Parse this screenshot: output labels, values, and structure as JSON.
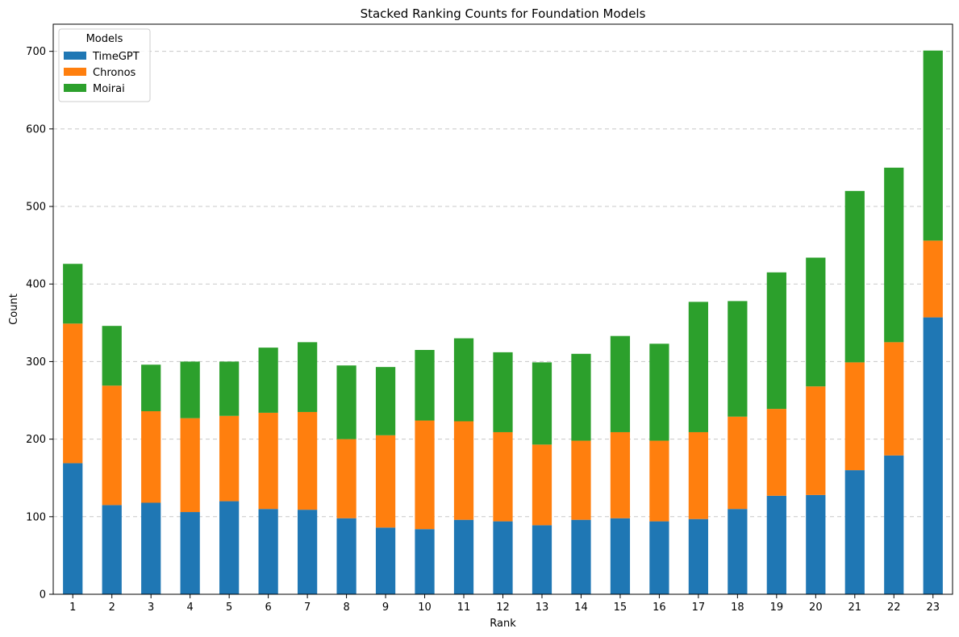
{
  "chart_data": {
    "type": "bar",
    "stacked": true,
    "title": "Stacked Ranking Counts for Foundation Models",
    "xlabel": "Rank",
    "ylabel": "Count",
    "ylim": [
      0,
      735
    ],
    "yticks": [
      0,
      100,
      200,
      300,
      400,
      500,
      600,
      700
    ],
    "grid": "y-dashed",
    "legend": {
      "title": "Models",
      "placement": "top-left"
    },
    "categories": [
      "1",
      "2",
      "3",
      "4",
      "5",
      "6",
      "7",
      "8",
      "9",
      "10",
      "11",
      "12",
      "13",
      "14",
      "15",
      "16",
      "17",
      "18",
      "19",
      "20",
      "21",
      "22",
      "23"
    ],
    "series": [
      {
        "name": "TimeGPT",
        "color": "#1f77b4",
        "values": [
          169,
          115,
          118,
          106,
          120,
          110,
          109,
          98,
          86,
          84,
          96,
          94,
          89,
          96,
          98,
          94,
          97,
          110,
          127,
          128,
          160,
          179,
          357
        ]
      },
      {
        "name": "Chronos",
        "color": "#ff7f0e",
        "values": [
          180,
          154,
          118,
          121,
          110,
          124,
          126,
          102,
          119,
          140,
          127,
          115,
          104,
          102,
          111,
          104,
          112,
          119,
          112,
          140,
          139,
          146,
          99
        ]
      },
      {
        "name": "Moirai",
        "color": "#2ca02c",
        "values": [
          77,
          77,
          60,
          73,
          70,
          84,
          90,
          95,
          88,
          91,
          107,
          103,
          106,
          112,
          124,
          125,
          168,
          149,
          176,
          166,
          221,
          225,
          245
        ]
      }
    ]
  }
}
